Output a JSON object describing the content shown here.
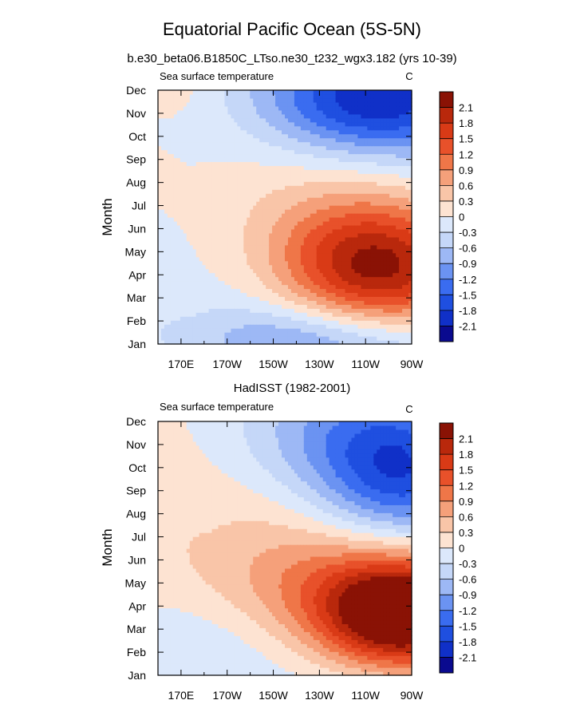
{
  "title": "Equatorial Pacific Ocean (5S-5N)",
  "colors": {
    "neg5": "#0a0a8f",
    "neg4": "#1030c8",
    "neg3": "#1f4fe0",
    "neg2": "#3a6cf0",
    "neg1": "#6b93f2",
    "neg0a": "#9db8f5",
    "neg0b": "#c5d7f8",
    "neg0c": "#dce8fb",
    "pos0": "#fde3d2",
    "pos1": "#f9c5a8",
    "pos2": "#f5a07a",
    "pos3": "#ef7648",
    "pos4": "#e8512a",
    "pos5": "#d93a16",
    "pos6": "#b9280c",
    "pos7": "#8a1205"
  },
  "chart_data": [
    {
      "type": "heatmap",
      "title": "b.e30_beta06.B1850C_LTso.ne30_t232_wgx3.182 (yrs 10-39)",
      "left_label": "Sea surface temperature",
      "right_label": "C",
      "xlabel": "",
      "ylabel": "Month",
      "x_ticks": [
        "170E",
        "170W",
        "150W",
        "130W",
        "110W",
        "90W"
      ],
      "y_ticks": [
        "Jan",
        "Feb",
        "Mar",
        "Apr",
        "May",
        "Jun",
        "Jul",
        "Aug",
        "Sep",
        "Oct",
        "Nov",
        "Dec"
      ],
      "x_range_lon": [
        160,
        270
      ],
      "colorbar_labels": [
        "2.1",
        "1.8",
        "1.5",
        "1.2",
        "0.9",
        "0.6",
        "0.3",
        "0",
        "-0.3",
        "-0.6",
        "-0.9",
        "-1.2",
        "-1.5",
        "-1.8",
        "-2.1"
      ],
      "contour_levels": [
        -2.1,
        -1.8,
        -1.5,
        -1.2,
        -0.9,
        -0.6,
        -0.3,
        0,
        0.3,
        0.6,
        0.9,
        1.2,
        1.5,
        1.8,
        2.1
      ],
      "field": {
        "cold_peak": {
          "lon": 252,
          "month": 10.6,
          "value": -1.6
        },
        "warm_peak": {
          "lon": 250,
          "month": 3.2,
          "value": 2.0
        },
        "amplitude_growth": "east-increasing"
      }
    },
    {
      "type": "heatmap",
      "title": "HadISST (1982-2001)",
      "left_label": "Sea surface temperature",
      "right_label": "C",
      "xlabel": "",
      "ylabel": "Month",
      "x_ticks": [
        "170E",
        "170W",
        "150W",
        "130W",
        "110W",
        "90W"
      ],
      "y_ticks": [
        "Jan",
        "Feb",
        "Mar",
        "Apr",
        "May",
        "Jun",
        "Jul",
        "Aug",
        "Sep",
        "Oct",
        "Nov",
        "Dec"
      ],
      "x_range_lon": [
        160,
        270
      ],
      "colorbar_labels": [
        "2.1",
        "1.8",
        "1.5",
        "1.2",
        "0.9",
        "0.6",
        "0.3",
        "0",
        "-0.3",
        "-0.6",
        "-0.9",
        "-1.2",
        "-1.5",
        "-1.8",
        "-2.1"
      ],
      "contour_levels": [
        -2.1,
        -1.8,
        -1.5,
        -1.2,
        -0.9,
        -0.6,
        -0.3,
        0,
        0.3,
        0.6,
        0.9,
        1.2,
        1.5,
        1.8,
        2.1
      ],
      "field": {
        "cold_peak": {
          "lon": 263,
          "month": 8.6,
          "value": -1.3
        },
        "warm_peak": {
          "lon": 264,
          "month": 2.6,
          "value": 2.2
        },
        "amplitude_growth": "east-increasing"
      }
    }
  ]
}
